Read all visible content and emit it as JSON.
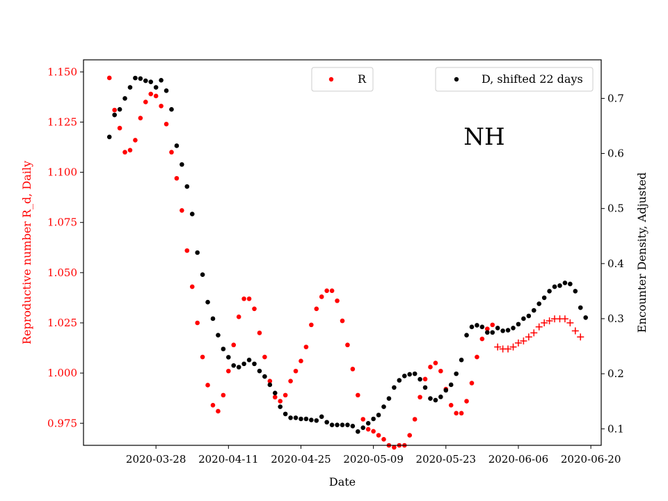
{
  "chart_data": {
    "type": "scatter",
    "annotation": "NH",
    "xlabel": "Date",
    "ylabel_left": "Reproductive number R_d, Daily",
    "ylabel_right": "Encounter Density, Adjusted",
    "colors": {
      "R": "#ff0000",
      "D": "#000000",
      "left_axis_text": "#ff0000",
      "right_axis_text": "#000000"
    },
    "x_ticks": [
      "2020-03-28",
      "2020-04-11",
      "2020-04-25",
      "2020-05-09",
      "2020-05-23",
      "2020-06-06",
      "2020-06-20"
    ],
    "x_range": [
      "2020-03-14",
      "2020-06-22"
    ],
    "y_left": {
      "ticks": [
        0.975,
        1.0,
        1.025,
        1.05,
        1.075,
        1.1,
        1.125,
        1.15
      ],
      "tick_labels": [
        "0.975",
        "1.000",
        "1.025",
        "1.050",
        "1.075",
        "1.100",
        "1.125",
        "1.150"
      ],
      "range": [
        0.964,
        1.156
      ]
    },
    "y_right": {
      "ticks": [
        0.1,
        0.2,
        0.3,
        0.4,
        0.5,
        0.6,
        0.7
      ],
      "tick_labels": [
        "0.1",
        "0.2",
        "0.3",
        "0.4",
        "0.5",
        "0.6",
        "0.7"
      ],
      "range": [
        0.07,
        0.77
      ]
    },
    "legend_left": {
      "label": "R",
      "placement": "top-center"
    },
    "legend_right": {
      "label": "D, shifted 22 days",
      "placement": "top-right"
    },
    "series": [
      {
        "name": "R",
        "axis": "left",
        "marker": "dot",
        "points": [
          [
            "2020-03-19",
            1.147
          ],
          [
            "2020-03-20",
            1.131
          ],
          [
            "2020-03-21",
            1.122
          ],
          [
            "2020-03-22",
            1.11
          ],
          [
            "2020-03-23",
            1.111
          ],
          [
            "2020-03-24",
            1.116
          ],
          [
            "2020-03-25",
            1.127
          ],
          [
            "2020-03-26",
            1.135
          ],
          [
            "2020-03-27",
            1.139
          ],
          [
            "2020-03-28",
            1.138
          ],
          [
            "2020-03-29",
            1.133
          ],
          [
            "2020-03-30",
            1.124
          ],
          [
            "2020-03-31",
            1.11
          ],
          [
            "2020-04-01",
            1.097
          ],
          [
            "2020-04-02",
            1.081
          ],
          [
            "2020-04-03",
            1.061
          ],
          [
            "2020-04-04",
            1.043
          ],
          [
            "2020-04-05",
            1.025
          ],
          [
            "2020-04-06",
            1.008
          ],
          [
            "2020-04-07",
            0.994
          ],
          [
            "2020-04-08",
            0.984
          ],
          [
            "2020-04-09",
            0.981
          ],
          [
            "2020-04-10",
            0.989
          ],
          [
            "2020-04-11",
            1.001
          ],
          [
            "2020-04-12",
            1.014
          ],
          [
            "2020-04-13",
            1.028
          ],
          [
            "2020-04-14",
            1.037
          ],
          [
            "2020-04-15",
            1.037
          ],
          [
            "2020-04-16",
            1.032
          ],
          [
            "2020-04-17",
            1.02
          ],
          [
            "2020-04-18",
            1.008
          ],
          [
            "2020-04-19",
            0.996
          ],
          [
            "2020-04-20",
            0.988
          ],
          [
            "2020-04-21",
            0.986
          ],
          [
            "2020-04-22",
            0.989
          ],
          [
            "2020-04-23",
            0.996
          ],
          [
            "2020-04-24",
            1.001
          ],
          [
            "2020-04-25",
            1.006
          ],
          [
            "2020-04-26",
            1.013
          ],
          [
            "2020-04-27",
            1.024
          ],
          [
            "2020-04-28",
            1.032
          ],
          [
            "2020-04-29",
            1.038
          ],
          [
            "2020-04-30",
            1.041
          ],
          [
            "2020-05-01",
            1.041
          ],
          [
            "2020-05-02",
            1.036
          ],
          [
            "2020-05-03",
            1.026
          ],
          [
            "2020-05-04",
            1.014
          ],
          [
            "2020-05-05",
            1.002
          ],
          [
            "2020-05-06",
            0.989
          ],
          [
            "2020-05-07",
            0.977
          ],
          [
            "2020-05-08",
            0.972
          ],
          [
            "2020-05-09",
            0.971
          ],
          [
            "2020-05-10",
            0.969
          ],
          [
            "2020-05-11",
            0.967
          ],
          [
            "2020-05-12",
            0.964
          ],
          [
            "2020-05-13",
            0.963
          ],
          [
            "2020-05-14",
            0.964
          ],
          [
            "2020-05-15",
            0.964
          ],
          [
            "2020-05-16",
            0.969
          ],
          [
            "2020-05-17",
            0.977
          ],
          [
            "2020-05-18",
            0.988
          ],
          [
            "2020-05-19",
            0.997
          ],
          [
            "2020-05-20",
            1.003
          ],
          [
            "2020-05-21",
            1.005
          ],
          [
            "2020-05-22",
            1.001
          ],
          [
            "2020-05-23",
            0.992
          ],
          [
            "2020-05-24",
            0.984
          ],
          [
            "2020-05-25",
            0.98
          ],
          [
            "2020-05-26",
            0.98
          ],
          [
            "2020-05-27",
            0.986
          ],
          [
            "2020-05-28",
            0.995
          ],
          [
            "2020-05-29",
            1.008
          ],
          [
            "2020-05-30",
            1.017
          ],
          [
            "2020-05-31",
            1.022
          ],
          [
            "2020-06-01",
            1.024
          ]
        ]
      },
      {
        "name": "R",
        "axis": "left",
        "marker": "plus",
        "points": [
          [
            "2020-06-02",
            1.013
          ],
          [
            "2020-06-03",
            1.012
          ],
          [
            "2020-06-04",
            1.012
          ],
          [
            "2020-06-05",
            1.013
          ],
          [
            "2020-06-06",
            1.015
          ],
          [
            "2020-06-07",
            1.016
          ],
          [
            "2020-06-08",
            1.018
          ],
          [
            "2020-06-09",
            1.02
          ],
          [
            "2020-06-10",
            1.023
          ],
          [
            "2020-06-11",
            1.025
          ],
          [
            "2020-06-12",
            1.026
          ],
          [
            "2020-06-13",
            1.027
          ],
          [
            "2020-06-14",
            1.027
          ],
          [
            "2020-06-15",
            1.027
          ],
          [
            "2020-06-16",
            1.025
          ],
          [
            "2020-06-17",
            1.021
          ],
          [
            "2020-06-18",
            1.018
          ]
        ]
      },
      {
        "name": "D, shifted 22 days",
        "axis": "right",
        "marker": "dot",
        "points": [
          [
            "2020-03-19",
            0.63
          ],
          [
            "2020-03-20",
            0.67
          ],
          [
            "2020-03-21",
            0.68
          ],
          [
            "2020-03-22",
            0.7
          ],
          [
            "2020-03-23",
            0.72
          ],
          [
            "2020-03-24",
            0.737
          ],
          [
            "2020-03-25",
            0.736
          ],
          [
            "2020-03-26",
            0.732
          ],
          [
            "2020-03-27",
            0.73
          ],
          [
            "2020-03-28",
            0.72
          ],
          [
            "2020-03-29",
            0.733
          ],
          [
            "2020-03-30",
            0.714
          ],
          [
            "2020-03-31",
            0.68
          ],
          [
            "2020-04-01",
            0.614
          ],
          [
            "2020-04-02",
            0.58
          ],
          [
            "2020-04-03",
            0.54
          ],
          [
            "2020-04-04",
            0.49
          ],
          [
            "2020-04-05",
            0.42
          ],
          [
            "2020-04-06",
            0.38
          ],
          [
            "2020-04-07",
            0.33
          ],
          [
            "2020-04-08",
            0.3
          ],
          [
            "2020-04-09",
            0.27
          ],
          [
            "2020-04-10",
            0.245
          ],
          [
            "2020-04-11",
            0.23
          ],
          [
            "2020-04-12",
            0.215
          ],
          [
            "2020-04-13",
            0.212
          ],
          [
            "2020-04-14",
            0.218
          ],
          [
            "2020-04-15",
            0.225
          ],
          [
            "2020-04-16",
            0.218
          ],
          [
            "2020-04-17",
            0.205
          ],
          [
            "2020-04-18",
            0.195
          ],
          [
            "2020-04-19",
            0.18
          ],
          [
            "2020-04-20",
            0.165
          ],
          [
            "2020-04-21",
            0.14
          ],
          [
            "2020-04-22",
            0.127
          ],
          [
            "2020-04-23",
            0.12
          ],
          [
            "2020-04-24",
            0.12
          ],
          [
            "2020-04-25",
            0.118
          ],
          [
            "2020-04-26",
            0.118
          ],
          [
            "2020-04-27",
            0.116
          ],
          [
            "2020-04-28",
            0.115
          ],
          [
            "2020-04-29",
            0.122
          ],
          [
            "2020-04-30",
            0.112
          ],
          [
            "2020-05-01",
            0.107
          ],
          [
            "2020-05-02",
            0.107
          ],
          [
            "2020-05-03",
            0.107
          ],
          [
            "2020-05-04",
            0.107
          ],
          [
            "2020-05-05",
            0.105
          ],
          [
            "2020-05-06",
            0.095
          ],
          [
            "2020-05-07",
            0.102
          ],
          [
            "2020-05-08",
            0.11
          ],
          [
            "2020-05-09",
            0.118
          ],
          [
            "2020-05-10",
            0.125
          ],
          [
            "2020-05-11",
            0.14
          ],
          [
            "2020-05-12",
            0.155
          ],
          [
            "2020-05-13",
            0.175
          ],
          [
            "2020-05-14",
            0.188
          ],
          [
            "2020-05-15",
            0.196
          ],
          [
            "2020-05-16",
            0.199
          ],
          [
            "2020-05-17",
            0.2
          ],
          [
            "2020-05-18",
            0.19
          ],
          [
            "2020-05-19",
            0.175
          ],
          [
            "2020-05-20",
            0.155
          ],
          [
            "2020-05-21",
            0.152
          ],
          [
            "2020-05-22",
            0.158
          ],
          [
            "2020-05-23",
            0.17
          ],
          [
            "2020-05-24",
            0.18
          ],
          [
            "2020-05-25",
            0.2
          ],
          [
            "2020-05-26",
            0.225
          ],
          [
            "2020-05-27",
            0.27
          ],
          [
            "2020-05-28",
            0.285
          ],
          [
            "2020-05-29",
            0.288
          ],
          [
            "2020-05-30",
            0.285
          ],
          [
            "2020-05-31",
            0.275
          ],
          [
            "2020-06-01",
            0.275
          ],
          [
            "2020-06-02",
            0.283
          ],
          [
            "2020-06-03",
            0.278
          ],
          [
            "2020-06-04",
            0.279
          ],
          [
            "2020-06-05",
            0.283
          ],
          [
            "2020-06-06",
            0.29
          ],
          [
            "2020-06-07",
            0.3
          ],
          [
            "2020-06-08",
            0.305
          ],
          [
            "2020-06-09",
            0.315
          ],
          [
            "2020-06-10",
            0.327
          ],
          [
            "2020-06-11",
            0.338
          ],
          [
            "2020-06-12",
            0.35
          ],
          [
            "2020-06-13",
            0.358
          ],
          [
            "2020-06-14",
            0.36
          ],
          [
            "2020-06-15",
            0.365
          ],
          [
            "2020-06-16",
            0.363
          ],
          [
            "2020-06-17",
            0.35
          ],
          [
            "2020-06-18",
            0.32
          ],
          [
            "2020-06-19",
            0.302
          ]
        ]
      }
    ]
  }
}
